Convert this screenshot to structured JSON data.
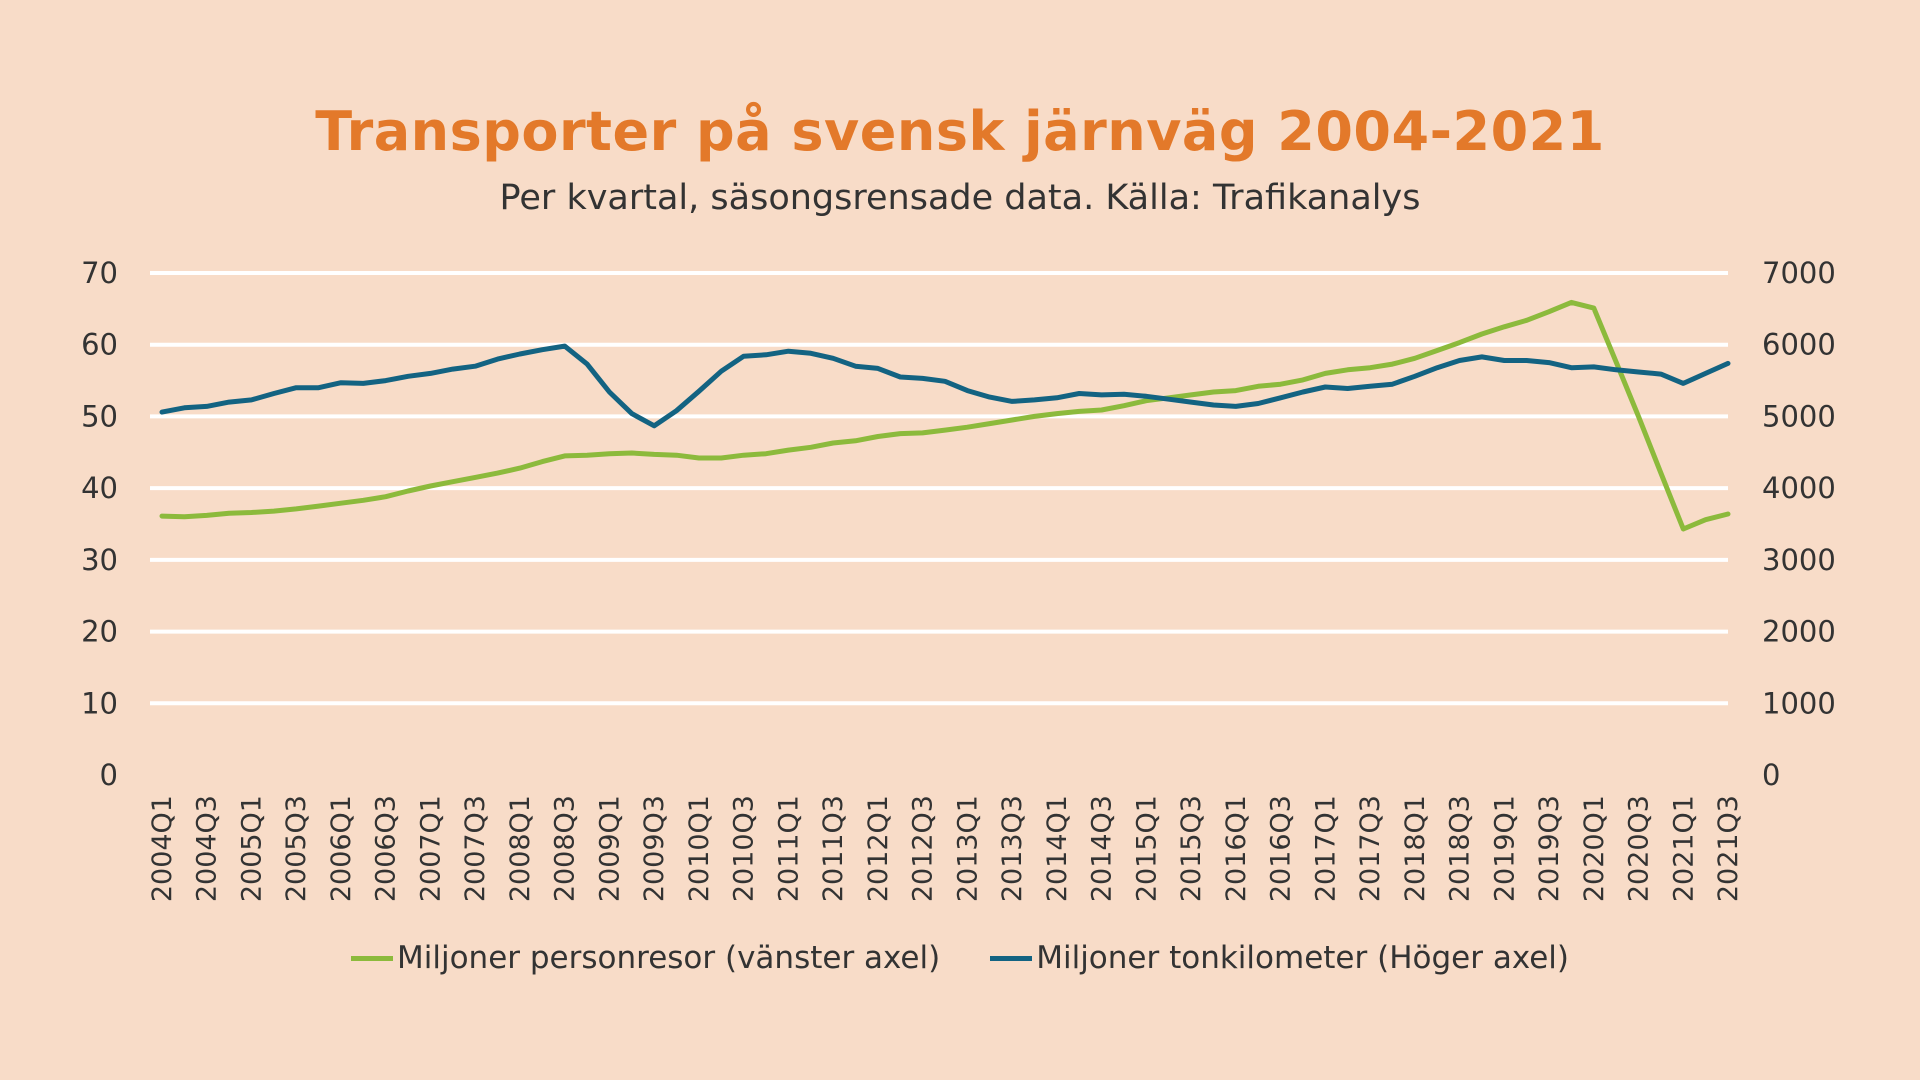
{
  "chart_data": {
    "type": "line",
    "title": "Transporter på svensk järnväg 2004-2021",
    "subtitle": "Per kvartal, säsongsrensade data. Källa: Trafikanalys",
    "xlabel": "",
    "ylabel": "",
    "y2label": "",
    "ylim": [
      0,
      70
    ],
    "y2lim": [
      0,
      7000
    ],
    "yticks": [
      "0",
      "10",
      "20",
      "30",
      "40",
      "50",
      "60",
      "70"
    ],
    "y2ticks": [
      "0",
      "1000",
      "2000",
      "3000",
      "4000",
      "5000",
      "6000",
      "7000"
    ],
    "grid": true,
    "legend_position": "bottom",
    "categories": [
      "2004Q1",
      "2004Q2",
      "2004Q3",
      "2004Q4",
      "2005Q1",
      "2005Q2",
      "2005Q3",
      "2005Q4",
      "2006Q1",
      "2006Q2",
      "2006Q3",
      "2006Q4",
      "2007Q1",
      "2007Q2",
      "2007Q3",
      "2007Q4",
      "2008Q1",
      "2008Q2",
      "2008Q3",
      "2008Q4",
      "2009Q1",
      "2009Q2",
      "2009Q3",
      "2009Q4",
      "2010Q1",
      "2010Q2",
      "2010Q3",
      "2010Q4",
      "2011Q1",
      "2011Q2",
      "2011Q3",
      "2011Q4",
      "2012Q1",
      "2012Q2",
      "2012Q3",
      "2012Q4",
      "2013Q1",
      "2013Q2",
      "2013Q3",
      "2013Q4",
      "2014Q1",
      "2014Q2",
      "2014Q3",
      "2014Q4",
      "2015Q1",
      "2015Q2",
      "2015Q3",
      "2015Q4",
      "2016Q1",
      "2016Q2",
      "2016Q3",
      "2016Q4",
      "2017Q1",
      "2017Q2",
      "2017Q3",
      "2017Q4",
      "2018Q1",
      "2018Q2",
      "2018Q3",
      "2018Q4",
      "2019Q1",
      "2019Q2",
      "2019Q3",
      "2019Q4",
      "2020Q1",
      "2020Q2",
      "2020Q3",
      "2020Q4",
      "2021Q1",
      "2021Q2",
      "2021Q3"
    ],
    "xtick_labels": [
      "2004Q1",
      "2004Q3",
      "2005Q1",
      "2005Q3",
      "2006Q1",
      "2006Q3",
      "2007Q1",
      "2007Q3",
      "2008Q1",
      "2008Q3",
      "2009Q1",
      "2009Q3",
      "2010Q1",
      "2010Q3",
      "2011Q1",
      "2011Q3",
      "2012Q1",
      "2012Q3",
      "2013Q1",
      "2013Q3",
      "2014Q1",
      "2014Q3",
      "2015Q1",
      "2015Q3",
      "2016Q1",
      "2016Q3",
      "2017Q1",
      "2017Q3",
      "2018Q1",
      "2018Q3",
      "2019Q1",
      "2019Q3",
      "2020Q1",
      "2020Q3",
      "2021Q1",
      "2021Q3"
    ],
    "series": [
      {
        "name": "Miljoner personresor (vänster axel)",
        "axis": "left",
        "color": "#8cba3c",
        "values": [
          36.1,
          36.0,
          36.2,
          36.5,
          36.6,
          36.8,
          37.1,
          37.5,
          37.9,
          38.3,
          38.8,
          39.6,
          40.3,
          40.9,
          41.5,
          42.1,
          42.8,
          43.7,
          44.5,
          44.6,
          44.8,
          44.9,
          44.7,
          44.6,
          44.2,
          44.2,
          44.6,
          44.8,
          45.3,
          45.7,
          46.3,
          46.6,
          47.2,
          47.6,
          47.7,
          48.1,
          48.5,
          49.0,
          49.5,
          50.0,
          50.4,
          50.7,
          50.9,
          51.5,
          52.2,
          52.6,
          53.0,
          53.4,
          53.6,
          54.2,
          54.5,
          55.1,
          56.0,
          56.5,
          56.8,
          57.3,
          58.1,
          59.2,
          60.3,
          61.5,
          62.5,
          63.4,
          64.6,
          65.9,
          65.1,
          57.6,
          50.0,
          42.1,
          34.3,
          35.6,
          36.4
        ]
      },
      {
        "name": "Miljoner tonkilometer (Höger axel)",
        "axis": "right",
        "color": "#136382",
        "values": [
          5060,
          5120,
          5140,
          5200,
          5230,
          5320,
          5400,
          5400,
          5470,
          5460,
          5500,
          5560,
          5600,
          5660,
          5700,
          5800,
          5870,
          5930,
          5980,
          5730,
          5340,
          5040,
          4870,
          5080,
          5350,
          5630,
          5840,
          5860,
          5910,
          5880,
          5810,
          5700,
          5670,
          5550,
          5530,
          5490,
          5360,
          5270,
          5210,
          5230,
          5260,
          5320,
          5300,
          5310,
          5280,
          5240,
          5200,
          5160,
          5140,
          5180,
          5260,
          5340,
          5410,
          5390,
          5420,
          5450,
          5560,
          5680,
          5780,
          5830,
          5780,
          5780,
          5750,
          5680,
          5690,
          5650,
          5620,
          5590,
          5460,
          5600,
          5740
        ]
      }
    ]
  }
}
